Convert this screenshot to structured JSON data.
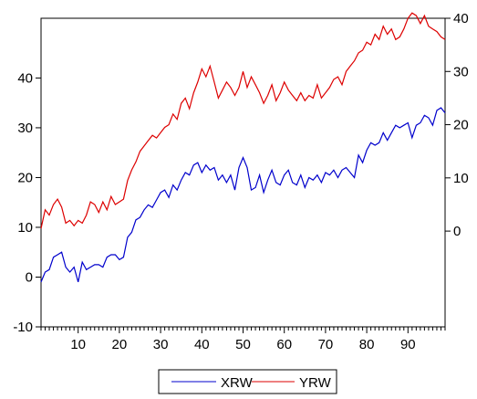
{
  "chart_data": {
    "type": "line",
    "title": "",
    "x": [
      1,
      2,
      3,
      4,
      5,
      6,
      7,
      8,
      9,
      10,
      11,
      12,
      13,
      14,
      15,
      16,
      17,
      18,
      19,
      20,
      21,
      22,
      23,
      24,
      25,
      26,
      27,
      28,
      29,
      30,
      31,
      32,
      33,
      34,
      35,
      36,
      37,
      38,
      39,
      40,
      41,
      42,
      43,
      44,
      45,
      46,
      47,
      48,
      49,
      50,
      51,
      52,
      53,
      54,
      55,
      56,
      57,
      58,
      59,
      60,
      61,
      62,
      63,
      64,
      65,
      66,
      67,
      68,
      69,
      70,
      71,
      72,
      73,
      74,
      75,
      76,
      77,
      78,
      79,
      80,
      81,
      82,
      83,
      84,
      85,
      86,
      87,
      88,
      89,
      90,
      91,
      92,
      93,
      94,
      95,
      96,
      97,
      98,
      99
    ],
    "left_axis": {
      "range": [
        -10,
        52
      ],
      "ticks": [
        -10,
        0,
        10,
        20,
        30,
        40
      ]
    },
    "right_axis": {
      "range": [
        -18,
        40
      ],
      "ticks": [
        0,
        10,
        20,
        30,
        40
      ]
    },
    "x_axis": {
      "range": [
        1,
        99
      ],
      "ticks": [
        10,
        20,
        30,
        40,
        50,
        60,
        70,
        80,
        90
      ]
    },
    "legend_position": "bottom-center",
    "series": [
      {
        "name": "XRW",
        "axis": "left",
        "color": "#0000cc",
        "values": [
          -1.0,
          1.0,
          1.5,
          4.0,
          4.5,
          5.0,
          2.0,
          1.0,
          2.0,
          -1.0,
          3.0,
          1.5,
          2.0,
          2.5,
          2.5,
          2.0,
          4.0,
          4.5,
          4.5,
          3.5,
          4.0,
          8.0,
          9.0,
          11.5,
          12.0,
          13.5,
          14.5,
          14.0,
          15.5,
          17.0,
          17.5,
          16.0,
          18.5,
          17.5,
          19.5,
          21.0,
          20.5,
          22.5,
          23.0,
          21.0,
          22.5,
          21.5,
          22.0,
          19.5,
          20.5,
          19.0,
          20.5,
          17.5,
          22.0,
          24.0,
          22.0,
          17.5,
          18.0,
          20.5,
          17.0,
          19.5,
          21.5,
          19.0,
          18.5,
          20.5,
          21.5,
          19.0,
          18.5,
          20.5,
          18.0,
          20.0,
          19.5,
          20.5,
          19.0,
          21.0,
          20.5,
          21.5,
          20.0,
          21.5,
          22.0,
          21.0,
          20.0,
          24.5,
          23.0,
          25.5,
          27.0,
          26.5,
          27.0,
          29.0,
          27.5,
          29.0,
          30.5,
          30.0,
          30.5,
          31.0,
          28.0,
          30.5,
          31.0,
          32.5,
          32.0,
          30.5,
          33.5,
          34.0,
          33.0
        ]
      },
      {
        "name": "YRW",
        "axis": "right",
        "color": "#dd0000",
        "values": [
          0.5,
          4.0,
          3.0,
          5.0,
          6.0,
          4.5,
          1.5,
          2.0,
          1.0,
          2.0,
          1.5,
          3.0,
          5.5,
          5.0,
          3.5,
          5.5,
          4.0,
          6.5,
          5.0,
          5.5,
          6.0,
          9.5,
          11.5,
          13.0,
          15.0,
          16.0,
          17.0,
          18.0,
          17.5,
          18.5,
          19.5,
          20.0,
          22.0,
          21.0,
          24.0,
          25.0,
          23.0,
          26.0,
          28.0,
          30.5,
          29.0,
          31.0,
          28.0,
          25.0,
          26.5,
          28.0,
          27.0,
          25.5,
          27.0,
          30.0,
          27.0,
          29.0,
          27.5,
          26.0,
          24.0,
          25.5,
          27.5,
          24.5,
          26.0,
          28.0,
          26.5,
          25.5,
          24.5,
          26.0,
          24.5,
          25.5,
          25.0,
          27.5,
          25.0,
          26.0,
          27.0,
          28.5,
          29.0,
          27.5,
          30.0,
          31.0,
          32.0,
          33.5,
          34.0,
          35.5,
          35.0,
          37.0,
          36.0,
          38.5,
          37.0,
          38.0,
          36.0,
          36.5,
          38.0,
          40.0,
          41.0,
          40.5,
          39.0,
          40.5,
          38.5,
          38.0,
          37.5,
          36.5,
          36.0
        ]
      }
    ]
  }
}
